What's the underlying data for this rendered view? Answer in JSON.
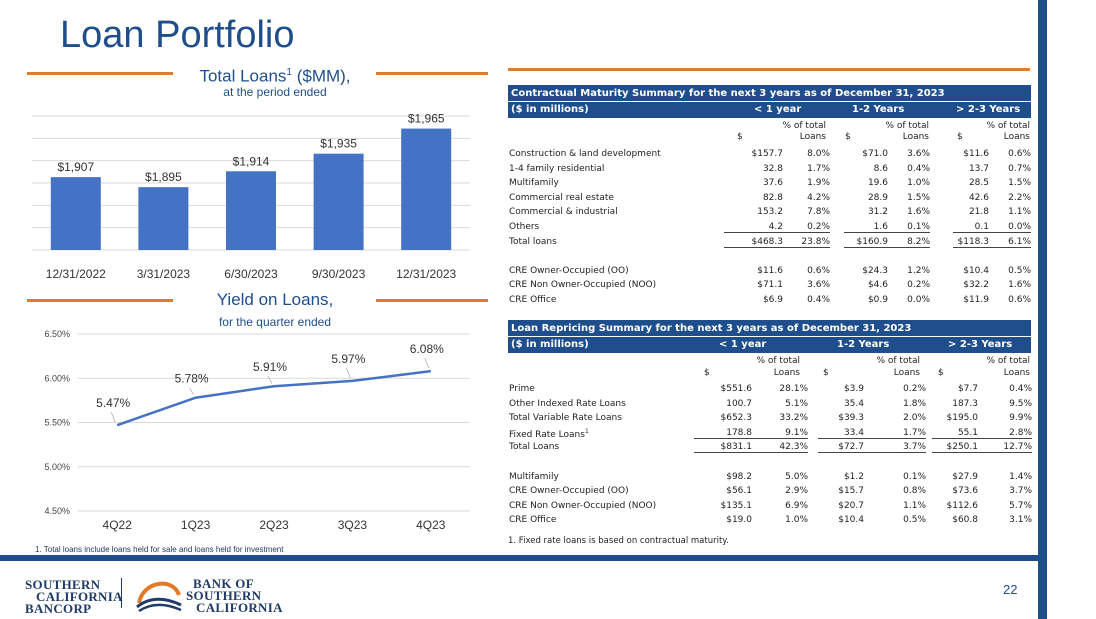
{
  "page": {
    "title": "Loan Portfolio",
    "page_number": "22"
  },
  "bar_chart": {
    "title": "Total Loans",
    "title_sup": "1",
    "title_suffix": " ($MM),",
    "subtitle": "at the period ended",
    "footnote": "1. Total loans include loans held for sale and loans held for investment",
    "color": "#4472c4"
  },
  "line_chart": {
    "title": "Yield on Loans,",
    "subtitle": "for the quarter ended",
    "color": "#4472c4"
  },
  "chart_data": [
    {
      "type": "bar",
      "categories": [
        "12/31/2022",
        "3/31/2023",
        "6/30/2023",
        "9/30/2023",
        "12/31/2023"
      ],
      "values": [
        1907,
        1895,
        1914,
        1935,
        1965
      ],
      "data_labels": [
        "$1,907",
        "$1,895",
        "$1,914",
        "$1,935",
        "$1,965"
      ],
      "ylim": [
        1820,
        1980
      ],
      "grid": true
    },
    {
      "type": "line",
      "categories": [
        "4Q22",
        "1Q23",
        "2Q23",
        "3Q23",
        "4Q23"
      ],
      "values": [
        5.47,
        5.78,
        5.91,
        5.97,
        6.08
      ],
      "data_labels": [
        "5.47%",
        "5.78%",
        "5.91%",
        "5.97%",
        "6.08%"
      ],
      "yticks": [
        "4.50%",
        "5.00%",
        "5.50%",
        "6.00%",
        "6.50%"
      ],
      "ylim": [
        4.5,
        6.5
      ],
      "grid": true
    }
  ],
  "maturity_table": {
    "title": "Contractual Maturity Summary for the next 3 years as of December 31, 2023",
    "unit_label": "($ in millions)",
    "periods": [
      "< 1 year",
      "1-2 Years",
      "> 2-3 Years"
    ],
    "sub_dollar": "$",
    "sub_pct_top": "% of total",
    "sub_pct_bottom": "Loans",
    "rows": [
      {
        "label": "Construction & land development",
        "v": [
          "$157.7",
          "8.0%",
          "$71.0",
          "3.6%",
          "$11.6",
          "0.6%"
        ]
      },
      {
        "label": "1-4 family residential",
        "v": [
          "32.8",
          "1.7%",
          "8.6",
          "0.4%",
          "13.7",
          "0.7%"
        ]
      },
      {
        "label": "Multifamily",
        "v": [
          "37.6",
          "1.9%",
          "19.6",
          "1.0%",
          "28.5",
          "1.5%"
        ]
      },
      {
        "label": "Commercial real estate",
        "v": [
          "82.8",
          "4.2%",
          "28.9",
          "1.5%",
          "42.6",
          "2.2%"
        ]
      },
      {
        "label": "Commercial & industrial",
        "v": [
          "153.2",
          "7.8%",
          "31.2",
          "1.6%",
          "21.8",
          "1.1%"
        ]
      },
      {
        "label": "Others",
        "v": [
          "4.2",
          "0.2%",
          "1.6",
          "0.1%",
          "0.1",
          "0.0%"
        ]
      },
      {
        "label": "Total loans",
        "v": [
          "$468.3",
          "23.8%",
          "$160.9",
          "8.2%",
          "$118.3",
          "6.1%"
        ]
      },
      {
        "label": "",
        "v": [
          "",
          "",
          "",
          "",
          "",
          ""
        ]
      },
      {
        "label": "CRE Owner-Occupied (OO)",
        "v": [
          "$11.6",
          "0.6%",
          "$24.3",
          "1.2%",
          "$10.4",
          "0.5%"
        ]
      },
      {
        "label": "CRE Non Owner-Occupied (NOO)",
        "v": [
          "$71.1",
          "3.6%",
          "$4.6",
          "0.2%",
          "$32.2",
          "1.6%"
        ]
      },
      {
        "label": "CRE Office",
        "v": [
          "$6.9",
          "0.4%",
          "$0.9",
          "0.0%",
          "$11.9",
          "0.6%"
        ]
      }
    ]
  },
  "repricing_table": {
    "title": "Loan Repricing Summary for the next 3 years as of December 31, 2023",
    "unit_label": "($ in millions)",
    "periods": [
      "< 1 year",
      "1-2 Years",
      "> 2-3 Years"
    ],
    "sub_dollar": "$",
    "sub_pct_top": "% of total",
    "sub_pct_bottom": "Loans",
    "rows": [
      {
        "label": "Prime",
        "v": [
          "$551.6",
          "28.1%",
          "$3.9",
          "0.2%",
          "$7.7",
          "0.4%"
        ]
      },
      {
        "label": "Other Indexed Rate Loans",
        "v": [
          "100.7",
          "5.1%",
          "35.4",
          "1.8%",
          "187.3",
          "9.5%"
        ]
      },
      {
        "label": "Total Variable Rate Loans",
        "v": [
          "$652.3",
          "33.2%",
          "$39.3",
          "2.0%",
          "$195.0",
          "9.9%"
        ]
      },
      {
        "label": "Fixed Rate Loans",
        "sup": "1",
        "v": [
          "178.8",
          "9.1%",
          "33.4",
          "1.7%",
          "55.1",
          "2.8%"
        ]
      },
      {
        "label": "Total Loans",
        "v": [
          "$831.1",
          "42.3%",
          "$72.7",
          "3.7%",
          "$250.1",
          "12.7%"
        ]
      },
      {
        "label": "",
        "v": [
          "",
          "",
          "",
          "",
          "",
          ""
        ]
      },
      {
        "label": "Multifamily",
        "v": [
          "$98.2",
          "5.0%",
          "$1.2",
          "0.1%",
          "$27.9",
          "1.4%"
        ]
      },
      {
        "label": "CRE Owner-Occupied (OO)",
        "v": [
          "$56.1",
          "2.9%",
          "$15.7",
          "0.8%",
          "$73.6",
          "3.7%"
        ]
      },
      {
        "label": "CRE Non Owner-Occupied (NOO)",
        "v": [
          "$135.1",
          "6.9%",
          "$20.7",
          "1.1%",
          "$112.6",
          "5.7%"
        ]
      },
      {
        "label": "CRE Office",
        "v": [
          "$19.0",
          "1.0%",
          "$10.4",
          "0.5%",
          "$60.8",
          "3.1%"
        ]
      }
    ],
    "footnote": "1. Fixed rate loans is based on contractual maturity."
  },
  "logos": {
    "left": [
      "SOUTHERN",
      "CALIFORNIA",
      "BANCORP"
    ],
    "right": [
      "BANK OF",
      "SOUTHERN",
      "CALIFORNIA"
    ],
    "navy": "#1f3b66",
    "orange": "#e07b2a"
  }
}
